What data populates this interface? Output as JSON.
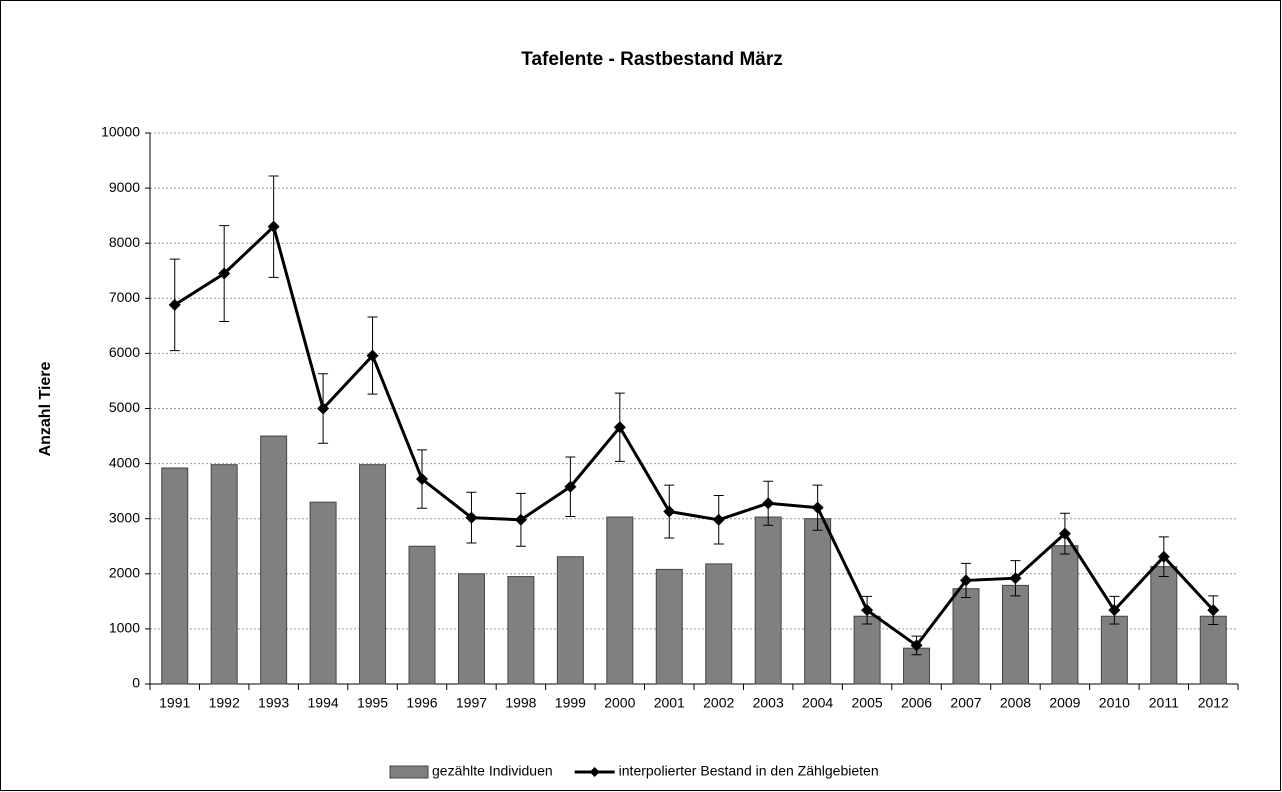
{
  "chart_data": {
    "type": "bar",
    "title": "Tafelente - Rastbestand März",
    "y_label": "Anzahl Tiere",
    "categories": [
      "1991",
      "1992",
      "1993",
      "1994",
      "1995",
      "1996",
      "1997",
      "1998",
      "1999",
      "2000",
      "2001",
      "2002",
      "2003",
      "2004",
      "2005",
      "2006",
      "2007",
      "2008",
      "2009",
      "2010",
      "2011",
      "2012"
    ],
    "series": [
      {
        "name": "gezählte Individuen",
        "type": "bar",
        "color": "#808080",
        "values": [
          3920,
          3980,
          4500,
          3300,
          3980,
          2500,
          2000,
          1950,
          2310,
          3030,
          2080,
          2180,
          3030,
          3000,
          1230,
          650,
          1730,
          1790,
          2510,
          1230,
          2130,
          1230
        ]
      },
      {
        "name": "interpolierter Bestand in den Zählgebieten",
        "type": "line",
        "color": "#000000",
        "values": [
          6880,
          7450,
          8300,
          5000,
          5960,
          3720,
          3020,
          2980,
          3580,
          4660,
          3130,
          2980,
          3280,
          3200,
          1340,
          700,
          1880,
          1920,
          2730,
          1340,
          2310,
          1340
        ],
        "error": [
          830,
          870,
          920,
          630,
          700,
          530,
          460,
          480,
          540,
          620,
          480,
          440,
          400,
          410,
          250,
          170,
          310,
          320,
          370,
          250,
          360,
          260
        ]
      }
    ],
    "ylim": [
      0,
      10000
    ],
    "yticks": [
      0,
      1000,
      2000,
      3000,
      4000,
      5000,
      6000,
      7000,
      8000,
      9000,
      10000
    ],
    "grid": true,
    "legend": "bottom"
  }
}
